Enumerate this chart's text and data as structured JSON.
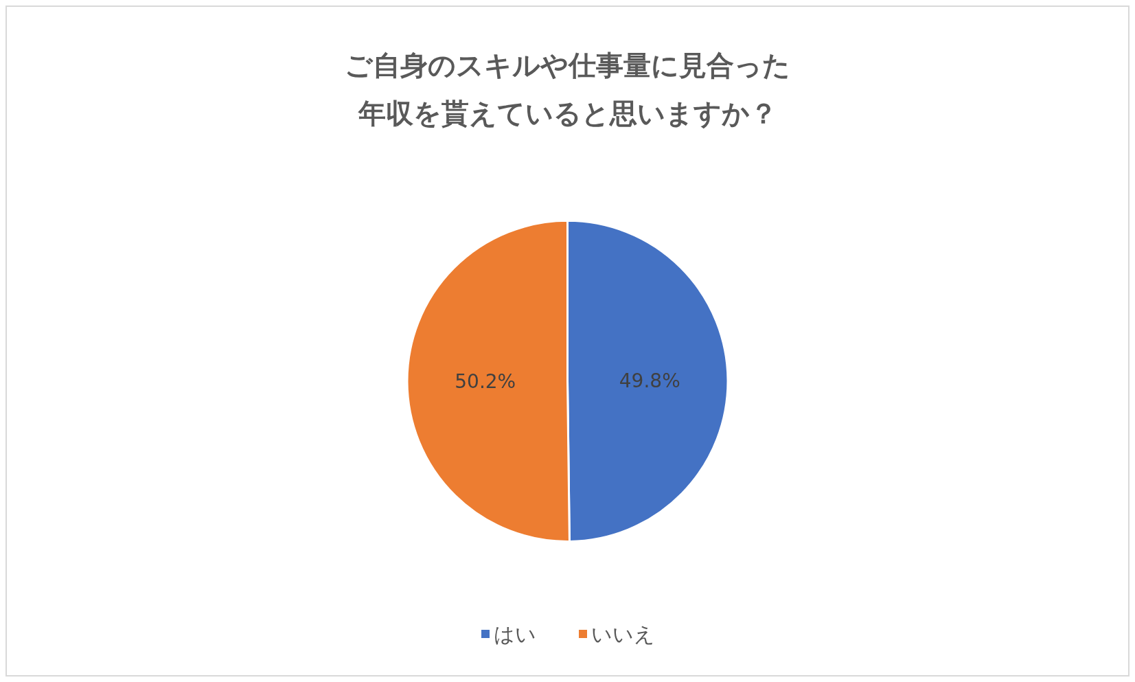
{
  "chart_data": {
    "type": "pie",
    "title": "ご自身のスキルや仕事量に見合った年収を貰えていると思いますか？",
    "categories": [
      "はい",
      "いいえ"
    ],
    "values": [
      49.8,
      50.2
    ],
    "colors": [
      "#4472c4",
      "#ed7d31"
    ],
    "value_labels": [
      "49.8%",
      "50.2%"
    ],
    "legend": "bottom"
  }
}
